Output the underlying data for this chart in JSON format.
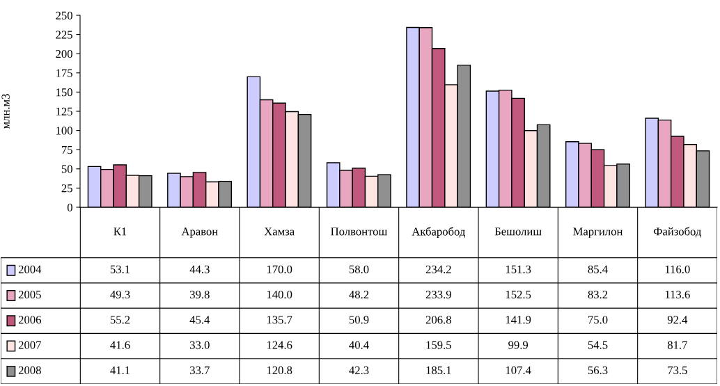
{
  "chart_data": {
    "type": "bar",
    "ylabel": "млн.м3",
    "categories": [
      "К1",
      "Аравон",
      "Хамза",
      "Полвонтош",
      "Акбаробод",
      "Бешолиш",
      "Маргилон",
      "Файзобод"
    ],
    "series": [
      {
        "name": "2004",
        "color": "#ccccff",
        "values": [
          53.1,
          44.3,
          170.0,
          58.0,
          234.2,
          151.3,
          85.4,
          116.0
        ],
        "value_labels": [
          "53.1",
          "44.3",
          "170.0",
          "58.0",
          "234.2",
          "151.3",
          "85.4",
          "116.0"
        ]
      },
      {
        "name": "2005",
        "color": "#e8a6c0",
        "values": [
          49.3,
          39.8,
          140.0,
          48.2,
          233.9,
          152.5,
          83.2,
          113.6
        ],
        "value_labels": [
          "49.3",
          "39.8",
          "140.0",
          "48.2",
          "233.9",
          "152.5",
          "83.2",
          "113.6"
        ]
      },
      {
        "name": "2006",
        "color": "#c0587e",
        "values": [
          55.2,
          45.4,
          135.7,
          50.9,
          206.8,
          141.9,
          75.0,
          92.4
        ],
        "value_labels": [
          "55.2",
          "45.4",
          "135.7",
          "50.9",
          "206.8",
          "141.9",
          "75.0",
          "92.4"
        ]
      },
      {
        "name": "2007",
        "color": "#ffe4e4",
        "values": [
          41.6,
          33.0,
          124.6,
          40.4,
          159.5,
          99.9,
          54.5,
          81.7
        ],
        "value_labels": [
          "41.6",
          "33.0",
          "124.6",
          "40.4",
          "159.5",
          "99.9",
          "54.5",
          "81.7"
        ]
      },
      {
        "name": "2008",
        "color": "#909090",
        "values": [
          41.1,
          33.7,
          120.8,
          42.3,
          185.1,
          107.4,
          56.3,
          73.5
        ],
        "value_labels": [
          "41.1",
          "33.7",
          "120.8",
          "42.3",
          "185.1",
          "107.4",
          "56.3",
          "73.5"
        ]
      }
    ],
    "ylim": [
      0,
      250
    ],
    "yticks": [
      0,
      25,
      50,
      75,
      100,
      125,
      150,
      175,
      200,
      225,
      250
    ],
    "legend": "bottom left"
  }
}
